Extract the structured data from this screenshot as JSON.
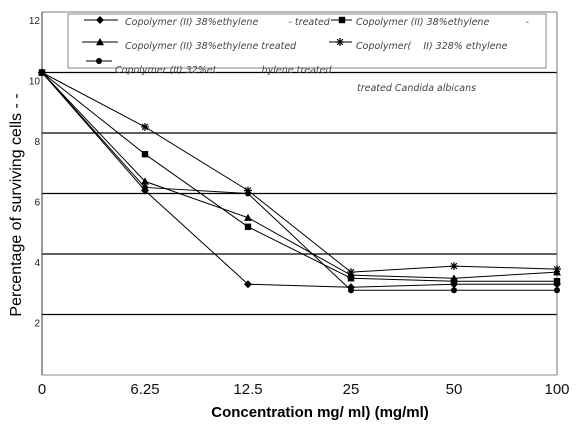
{
  "chart_data": {
    "type": "line",
    "categories": [
      "0",
      "6.25",
      "12.5",
      "25",
      "50",
      "100"
    ],
    "series": [
      {
        "name": "Copolymer (II) 38%ethylene          - treated",
        "marker": "diamond",
        "color": "#000000",
        "values": [
          10,
          6.1,
          3.0,
          2.9,
          3.0,
          3.0
        ]
      },
      {
        "name": "Copolymer (II) 38%ethylene            -",
        "marker": "square",
        "color": "#000000",
        "values": [
          10,
          7.3,
          4.9,
          3.2,
          3.1,
          3.1
        ]
      },
      {
        "name": "Copolymer (II) 38%ethylene treated",
        "marker": "triangle",
        "color": "#000000",
        "values": [
          10,
          6.4,
          5.2,
          3.3,
          3.2,
          3.4
        ]
      },
      {
        "name": "Copolymer(    II) 328% ethylene",
        "marker": "asterisk",
        "color": "#000000",
        "values": [
          10,
          8.2,
          6.1,
          3.4,
          3.6,
          3.5
        ]
      },
      {
        "name": "Copolymer (II) 32%et               hylene treated",
        "marker": "circle",
        "color": "#000000",
        "values": [
          10,
          6.2,
          6.0,
          2.8,
          2.8,
          2.8
        ]
      }
    ],
    "legend_note": "treated Candida albicans",
    "xlabel": "Concentration mg/ ml) (mg/ml)",
    "ylabel": "Percentage of surviving cells - -",
    "ylim": [
      0,
      12
    ],
    "yticks": [
      2,
      4,
      6,
      8,
      10,
      12
    ],
    "grid": true,
    "legend": "top"
  }
}
